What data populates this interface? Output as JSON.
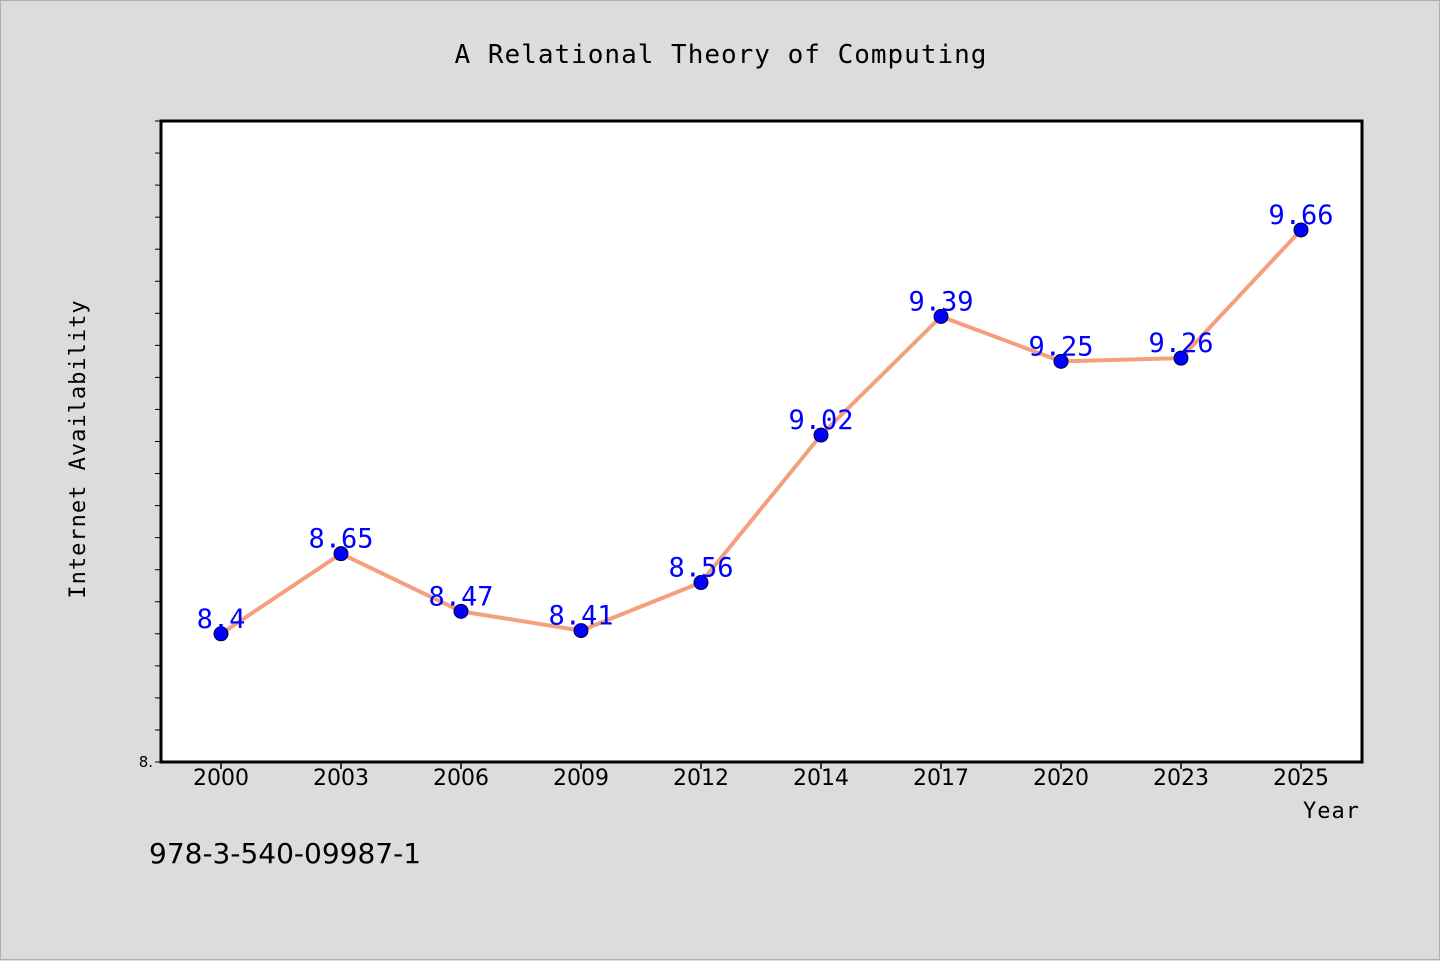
{
  "chart_data": {
    "type": "line",
    "title": "A Relational Theory of Computing",
    "xlabel": "Year",
    "ylabel": "Internet Availability",
    "categories": [
      "2000",
      "2003",
      "2006",
      "2009",
      "2012",
      "2014",
      "2017",
      "2020",
      "2023",
      "2025"
    ],
    "series": [
      {
        "values": [
          8.4,
          8.65,
          8.47,
          8.41,
          8.56,
          9.02,
          9.39,
          9.25,
          9.26,
          9.66
        ],
        "labels": [
          "8.4",
          "8.65",
          "8.47",
          "8.41",
          "8.56",
          "9.02",
          "9.39",
          "9.25",
          "9.26",
          "9.66"
        ],
        "line_color": "#f4a07e",
        "marker_color": "#0000ff"
      }
    ],
    "ylim": [
      8.0,
      10.0
    ],
    "yticks_labeled": [
      {
        "value": 8.0,
        "label": "8."
      }
    ],
    "grid": false,
    "legend": "none"
  },
  "footer": {
    "isbn": "978-3-540-09987-1"
  }
}
